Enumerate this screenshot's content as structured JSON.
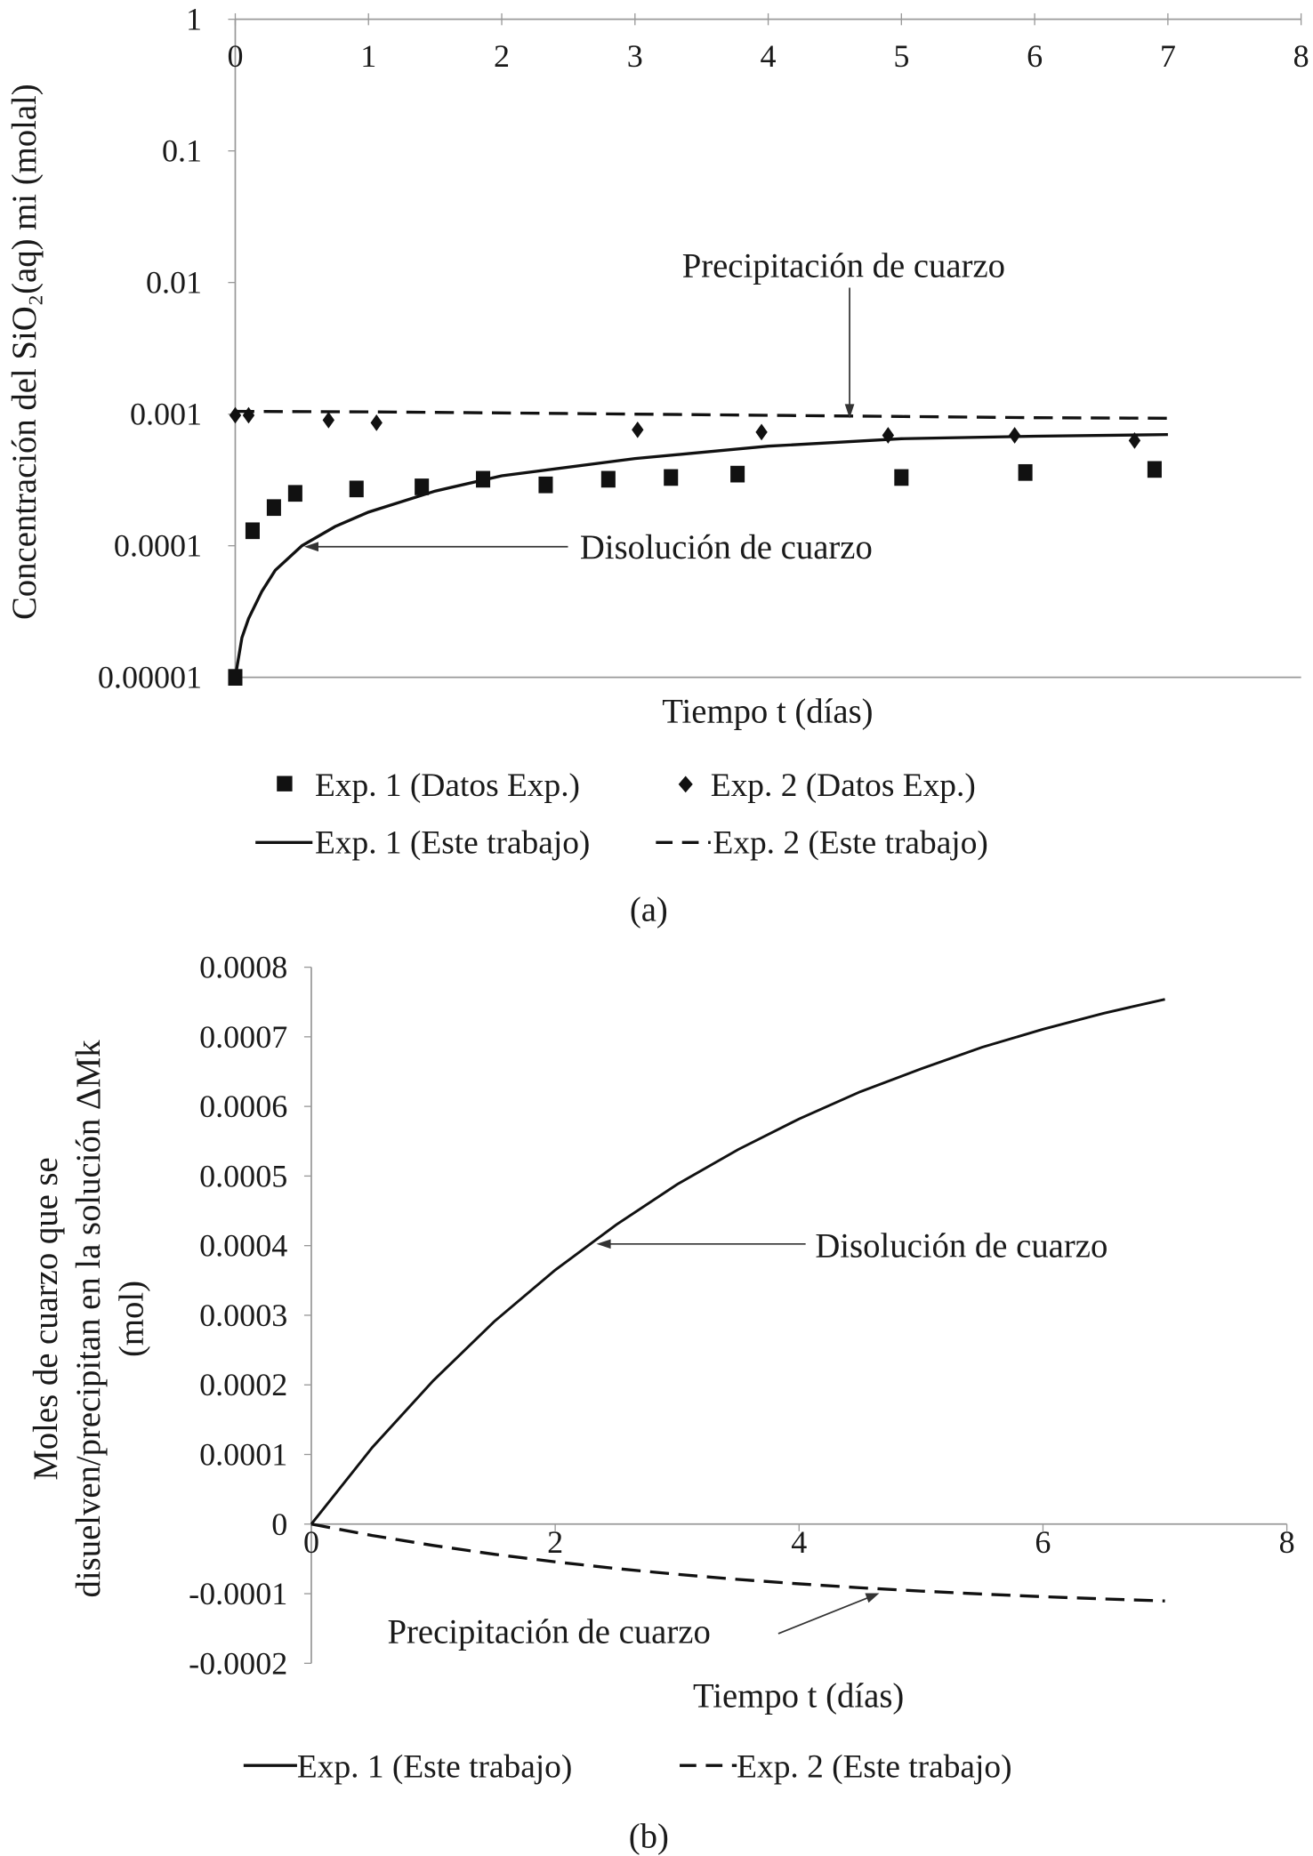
{
  "chart_data": [
    {
      "id": "a",
      "type": "scatter",
      "panel_label": "(a)",
      "title": "",
      "xlabel": "Tiempo t (días)",
      "ylabel": "Concentración del SiO₂(aq)  mi (molal)",
      "yscale": "log",
      "xlim": [
        0,
        8
      ],
      "ylim": [
        1e-05,
        1
      ],
      "x_ticks": [
        "0",
        "1",
        "2",
        "3",
        "4",
        "5",
        "6",
        "7",
        "8"
      ],
      "y_ticks": [
        "1",
        "0.1",
        "0.01",
        "0.001",
        "0.0001",
        "0.00001"
      ],
      "annotations": [
        "Precipitación de cuarzo",
        "Disolución de cuarzo"
      ],
      "legend_position": "bottom",
      "series": [
        {
          "name": "Exp. 1 (Datos Exp.)",
          "style": "square",
          "x": [
            0,
            0.13,
            0.29,
            0.45,
            0.91,
            1.4,
            1.86,
            2.33,
            2.8,
            3.27,
            3.77,
            5.0,
            5.93,
            6.9
          ],
          "y": [
            1e-05,
            0.00013,
            0.000195,
            0.00025,
            0.00027,
            0.00028,
            0.00032,
            0.00029,
            0.00032,
            0.00033,
            0.00035,
            0.00033,
            0.00036,
            0.00038
          ]
        },
        {
          "name": "Exp. 2 (Datos Exp.)",
          "style": "diamond",
          "x": [
            0,
            0.1,
            0.7,
            1.06,
            3.02,
            3.95,
            4.9,
            5.85,
            6.75
          ],
          "y": [
            0.00098,
            0.00098,
            0.0009,
            0.00086,
            0.00076,
            0.00073,
            0.00069,
            0.00069,
            0.00063
          ]
        },
        {
          "name": "Exp. 1 (Este trabajo)",
          "style": "solid",
          "x": [
            0,
            0.05,
            0.1,
            0.2,
            0.3,
            0.5,
            0.75,
            1,
            1.5,
            2,
            3,
            4,
            5,
            6,
            7
          ],
          "y": [
            1e-05,
            2e-05,
            2.8e-05,
            4.5e-05,
            6.5e-05,
            0.0001,
            0.00014,
            0.00018,
            0.00026,
            0.00034,
            0.00046,
            0.00057,
            0.00065,
            0.00068,
            0.0007
          ]
        },
        {
          "name": "Exp. 2 (Este trabajo)",
          "style": "dashed",
          "x": [
            0,
            1,
            2,
            3,
            4,
            5,
            6,
            7
          ],
          "y": [
            0.00105,
            0.00104,
            0.00102,
            0.001,
            0.00098,
            0.00096,
            0.00094,
            0.00093
          ]
        }
      ]
    },
    {
      "id": "b",
      "type": "line",
      "panel_label": "(b)",
      "title": "",
      "xlabel": "Tiempo t (días)",
      "ylabel": [
        "Moles de cuarzo que se",
        "disuelven/precipitan en la solución ΔMk",
        "(mol)"
      ],
      "xlim": [
        0,
        8
      ],
      "ylim": [
        -0.0002,
        0.0008
      ],
      "x_ticks": [
        "0",
        "2",
        "4",
        "6",
        "8"
      ],
      "y_ticks": [
        "0.0008",
        "0.0007",
        "0.0006",
        "0.0005",
        "0.0004",
        "0.0003",
        "0.0002",
        "0.0001",
        "0",
        "-0.0001",
        "-0.0002"
      ],
      "annotations": [
        "Disolución de cuarzo",
        "Precipitación de cuarzo"
      ],
      "legend_position": "bottom",
      "series": [
        {
          "name": "Exp. 1 (Este trabajo)",
          "style": "solid",
          "x": [
            0,
            0.5,
            1,
            1.5,
            2,
            2.5,
            3,
            3.5,
            4,
            4.5,
            5,
            5.5,
            6,
            6.5,
            7
          ],
          "y": [
            0,
            0.00011,
            0.000206,
            0.000291,
            0.000365,
            0.00043,
            0.000488,
            0.000538,
            0.000582,
            0.000621,
            0.000654,
            0.000685,
            0.000711,
            0.000734,
            0.000754
          ]
        },
        {
          "name": "Exp. 2 (Este trabajo)",
          "style": "dashed",
          "x": [
            0,
            0.5,
            1,
            1.5,
            2,
            2.5,
            3,
            3.5,
            4,
            4.5,
            5,
            5.5,
            6,
            6.5,
            7
          ],
          "y": [
            0,
            -1.64e-05,
            -3.08e-05,
            -4.33e-05,
            -5.42e-05,
            -6.38e-05,
            -7.22e-05,
            -7.95e-05,
            -8.58e-05,
            -9.14e-05,
            -9.63e-05,
            -0.0001005,
            -0.0001042,
            -0.0001075,
            -0.0001104
          ]
        }
      ]
    }
  ]
}
